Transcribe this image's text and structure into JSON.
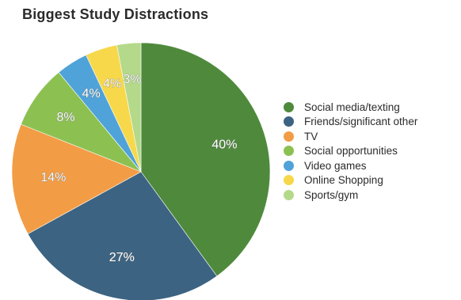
{
  "chart_data": {
    "type": "pie",
    "title": "Biggest Study Distractions",
    "slices": [
      {
        "label": "Social media/texting",
        "value": 40,
        "display": "40%",
        "color": "#4f8a3c"
      },
      {
        "label": "Friends/significant other",
        "value": 27,
        "display": "27%",
        "color": "#3c6382"
      },
      {
        "label": "TV",
        "value": 14,
        "display": "14%",
        "color": "#f29d45"
      },
      {
        "label": "Social opportunities",
        "value": 8,
        "display": "8%",
        "color": "#8cc152"
      },
      {
        "label": "Video games",
        "value": 4,
        "display": "4%",
        "color": "#4fa3d8"
      },
      {
        "label": "Online Shopping",
        "value": 4,
        "display": "4%",
        "color": "#f7d84a"
      },
      {
        "label": "Sports/gym",
        "value": 3,
        "display": "3%",
        "color": "#b5d98a"
      }
    ],
    "start_angle": "12 o'clock",
    "direction": "clockwise",
    "legend_position": "right"
  }
}
